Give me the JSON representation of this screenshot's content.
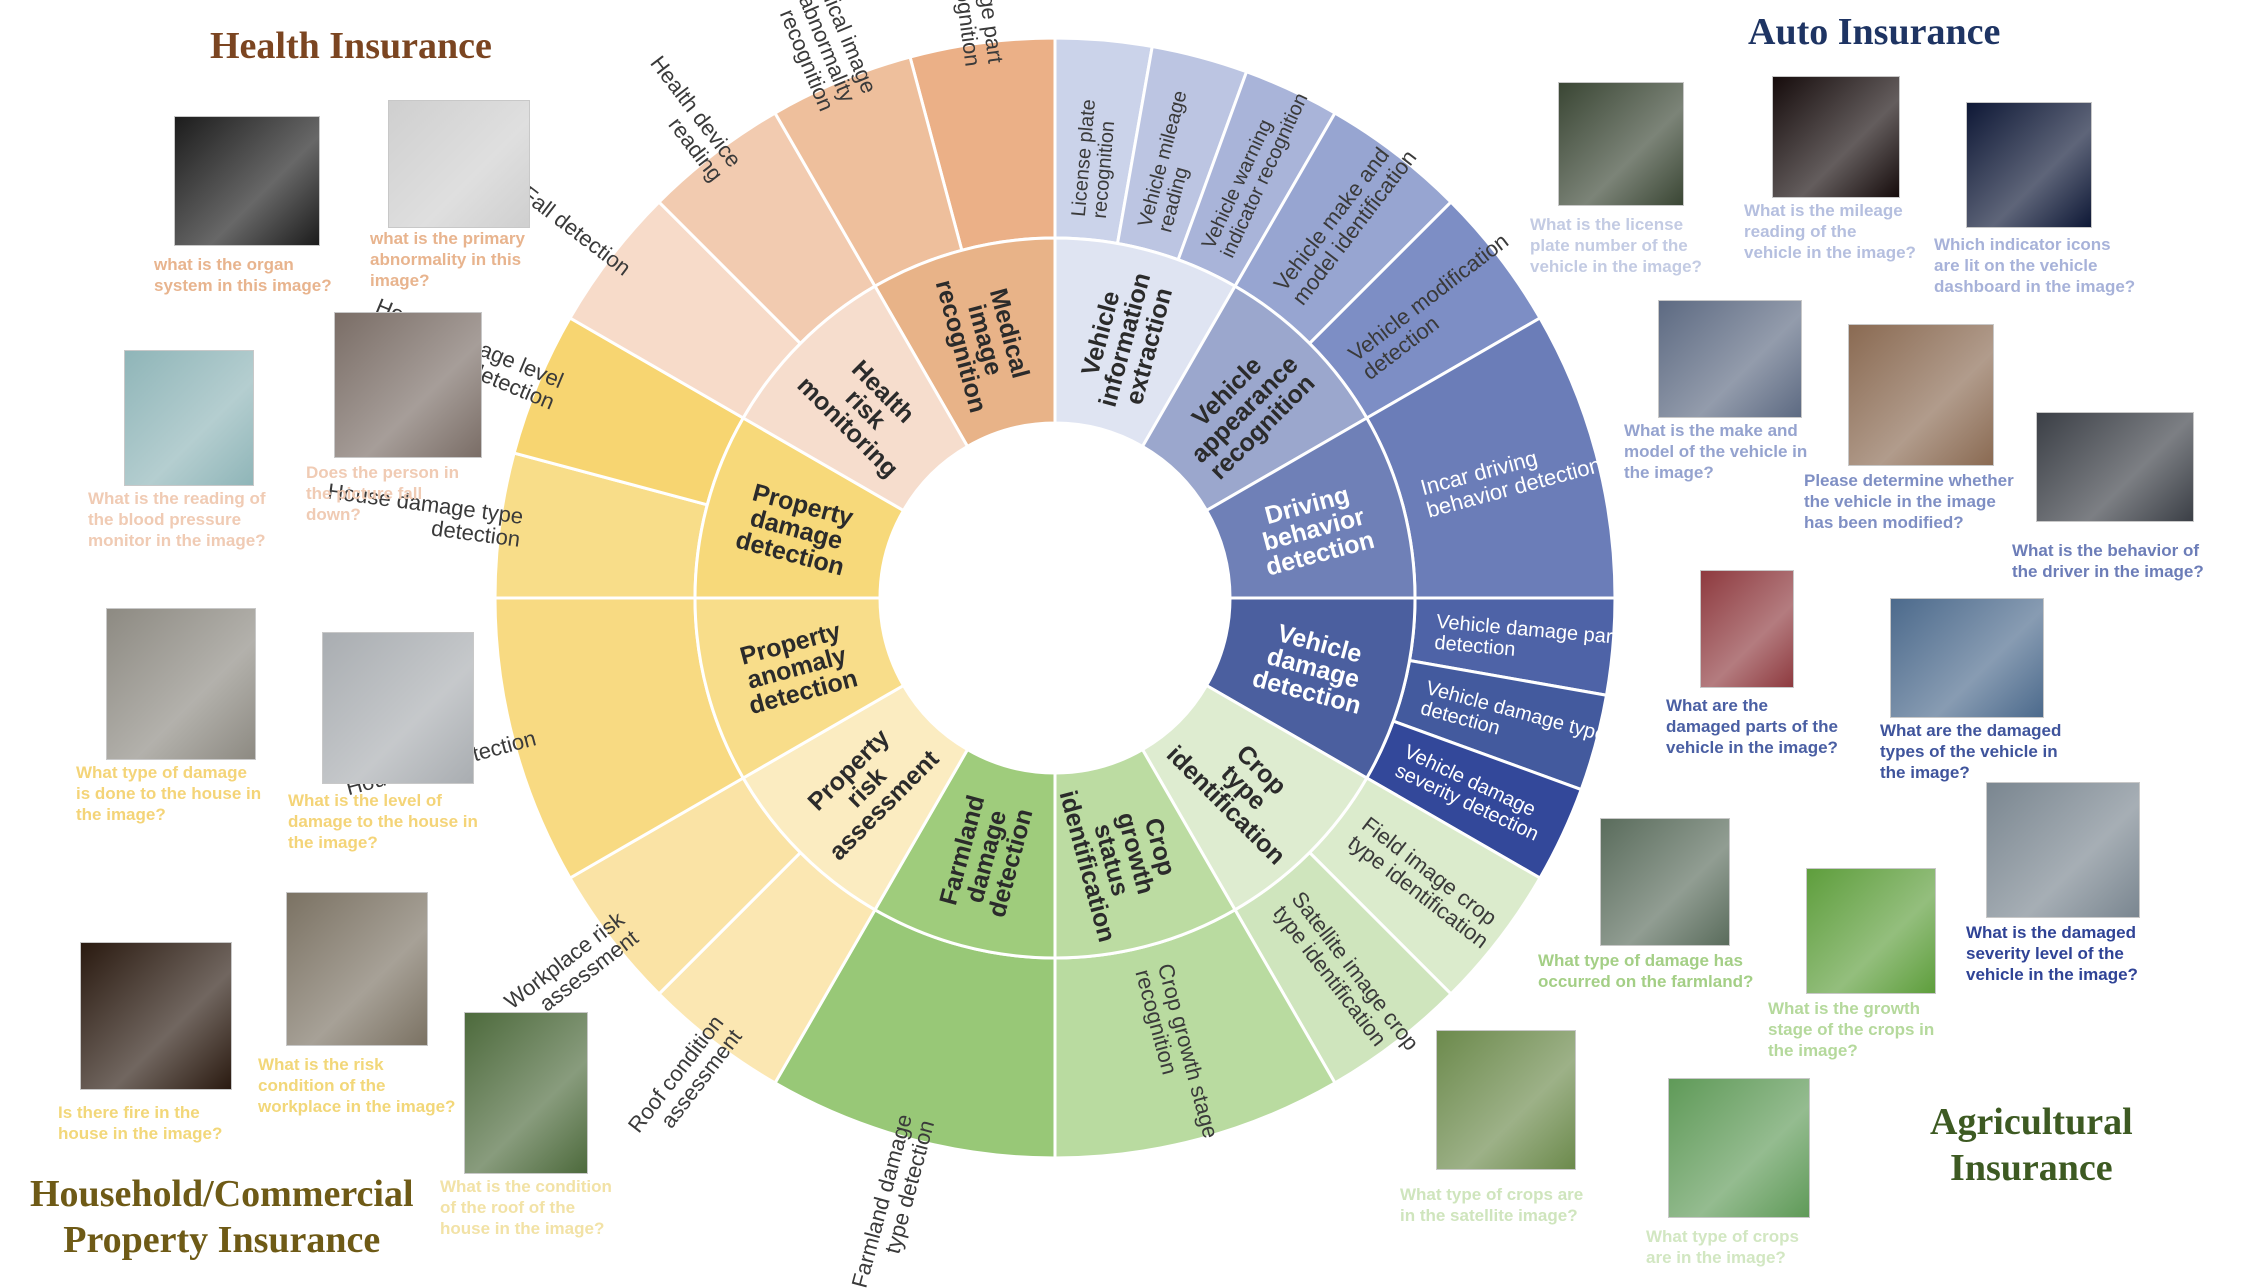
{
  "domains": [
    {
      "key": "health",
      "title": "Health Insurance",
      "color": "#7b4521"
    },
    {
      "key": "auto",
      "title": "Auto Insurance",
      "color": "#1e3463"
    },
    {
      "key": "property",
      "title": "Household/Commercial\nProperty Insurance",
      "color": "#6e5a16"
    },
    {
      "key": "agri",
      "title": "Agricultural\nInsurance",
      "color": "#3d5a22"
    }
  ],
  "inner_ring": [
    {
      "label": "Medical\nimage\nrecognition",
      "color": "#e8b388"
    },
    {
      "label": "Vehicle\ninformation\nextraction",
      "color": "#dfe4f2"
    },
    {
      "label": "Vehicle\nappearance\nrecognition",
      "color": "#9ba7cd"
    },
    {
      "label": "Driving\nbehavior\ndetection",
      "color": "#6f80b7"
    },
    {
      "label": "Vehicle\ndamage\ndetection",
      "color": "#4b5f9f"
    },
    {
      "label": "Crop\ntype\nidentification",
      "color": "#deecd0"
    },
    {
      "label": "Crop\ngrowth\nstatus\nidentification",
      "color": "#bcdca2"
    },
    {
      "label": "Farmland\ndamage\ndetection",
      "color": "#9fcc7c"
    },
    {
      "label": "Property\nrisk\nassessment",
      "color": "#fbecc1"
    },
    {
      "label": "Property\nanomaly\ndetection",
      "color": "#f8dd8a"
    },
    {
      "label": "Property\ndamage\ndetection",
      "color": "#f7d97a"
    },
    {
      "label": "Health\nrisk\nmonitoring",
      "color": "#f6ddcd"
    }
  ],
  "outer_ring": [
    {
      "label": "Medical image part\nrecognition",
      "color": "#ebb087"
    },
    {
      "label": "License plate\nrecognition",
      "color": "#cbd3ea"
    },
    {
      "label": "Vehicle mileage\nreading",
      "color": "#bcc5e2"
    },
    {
      "label": "Vehicle warning\nindicator recognition",
      "color": "#a9b4d9"
    },
    {
      "label": "Vehicle make and\nmodel identification",
      "color": "#97a5d1"
    },
    {
      "label": "Vehicle modification\ndetection",
      "color": "#7d8ec5"
    },
    {
      "label": "Incar driving\nbehavior detection",
      "color": "#6b7db8"
    },
    {
      "label": "Vehicle damage part\ndetection",
      "color": "#4e63a7"
    },
    {
      "label": "Vehicle damage type\ndetection",
      "color": "#435a9e"
    },
    {
      "label": "Vehicle damage\nseverity detection",
      "color": "#33489a"
    },
    {
      "label": "Field image crop\ntype identification",
      "color": "#dbebcc"
    },
    {
      "label": "Satellite image crop\ntype identification",
      "color": "#cfe5bd"
    },
    {
      "label": "Crop growth stage\nrecognition",
      "color": "#b9dba0"
    },
    {
      "label": "Farmland damage\ntype detection",
      "color": "#98c877"
    },
    {
      "label": "Roof condition\nassessment",
      "color": "#fbe7b2"
    },
    {
      "label": "Workplace risk\nassessment",
      "color": "#fae3a5"
    },
    {
      "label": "House fire detection",
      "color": "#f8da82"
    },
    {
      "label": "House damage type\ndetection",
      "color": "#f8dd89"
    },
    {
      "label": "House damage level\ndetection",
      "color": "#f7d571"
    },
    {
      "label": "Fall detection",
      "color": "#f7dbc9"
    },
    {
      "label": "Health device\nreading",
      "color": "#f2cbb0"
    },
    {
      "label": "Medical image\nabnormality\nrecognition",
      "color": "#eebf9c"
    }
  ],
  "examples": [
    {
      "question": "what is the organ\nsystem in this image?",
      "color": "#e8b48e",
      "thumb": "#1c1c1c"
    },
    {
      "question": "what is the primary\nabnormality in this\nimage?",
      "color": "#e8b48e",
      "thumb": "#cfcfcf"
    },
    {
      "question": "What is the reading of\nthe blood pressure\nmonitor in the image?",
      "color": "#f0cbb4",
      "thumb": "#8fb5b8"
    },
    {
      "question": "Does the person in\nthe picture fall\ndown?",
      "color": "#f0cbb4",
      "thumb": "#7a6d66"
    },
    {
      "question": "What is the license\nplate number of the\nvehicle in the image?",
      "color": "#c3cbe3",
      "thumb": "#3a4634"
    },
    {
      "question": "What is the mileage\nreading of the\nvehicle in the image?",
      "color": "#b5bfdf",
      "thumb": "#160c0c"
    },
    {
      "question": "Which indicator icons\nare lit on the vehicle\ndashboard in the image?",
      "color": "#a7b2d9",
      "thumb": "#0e1836"
    },
    {
      "question": "What is the make and\nmodel of the vehicle in\nthe image?",
      "color": "#95a3cf",
      "thumb": "#5d6a82"
    },
    {
      "question": "Please determine whether\nthe vehicle in the image\nhas been modified?",
      "color": "#7f8fc4",
      "thumb": "#8a6a52"
    },
    {
      "question": "What is the behavior of\nthe driver in the image?",
      "color": "#6c7db8",
      "thumb": "#3b3f46"
    },
    {
      "question": "What are the\ndamaged parts of the\nvehicle in the image?",
      "color": "#4a5fa3",
      "thumb": "#8e3a3f"
    },
    {
      "question": "What are the damaged\ntypes of the vehicle in\nthe image?",
      "color": "#3f549c",
      "thumb": "#4c6a8c"
    },
    {
      "question": "What is the damaged\nseverity level of the\nvehicle in the image?",
      "color": "#2f4396",
      "thumb": "#7a8690"
    },
    {
      "question": "What type of crops are\nin the satellite image?",
      "color": "#cfe5bd",
      "thumb": "#6c8a4c"
    },
    {
      "question": "What type of crops\nare in the image?",
      "color": "#d2e7c2",
      "thumb": "#5f9a58"
    },
    {
      "question": "What is the growth\nstage of the crops in\nthe image?",
      "color": "#b5d99c",
      "thumb": "#5e9e3c"
    },
    {
      "question": "What type of damage has\noccurred on the farmland?",
      "color": "#a4cf86",
      "thumb": "#5a6c5c"
    },
    {
      "question": "What type of damage\nis done to the house in\nthe image?",
      "color": "#f4d478",
      "thumb": "#8d8a82"
    },
    {
      "question": "What is the level of\ndamage to the house in\nthe image?",
      "color": "#f4d478",
      "thumb": "#a9adb1"
    },
    {
      "question": "Is there fire in the\nhouse in the image?",
      "color": "#f2d779",
      "thumb": "#2a1a10"
    },
    {
      "question": "What is the risk\ncondition of the\nworkplace in the image?",
      "color": "#f2d779",
      "thumb": "#7b7263"
    },
    {
      "question": "What is the condition\nof the roof of the\nhouse in the image?",
      "color": "#f2e2a6",
      "thumb": "#4d6a3c"
    }
  ]
}
